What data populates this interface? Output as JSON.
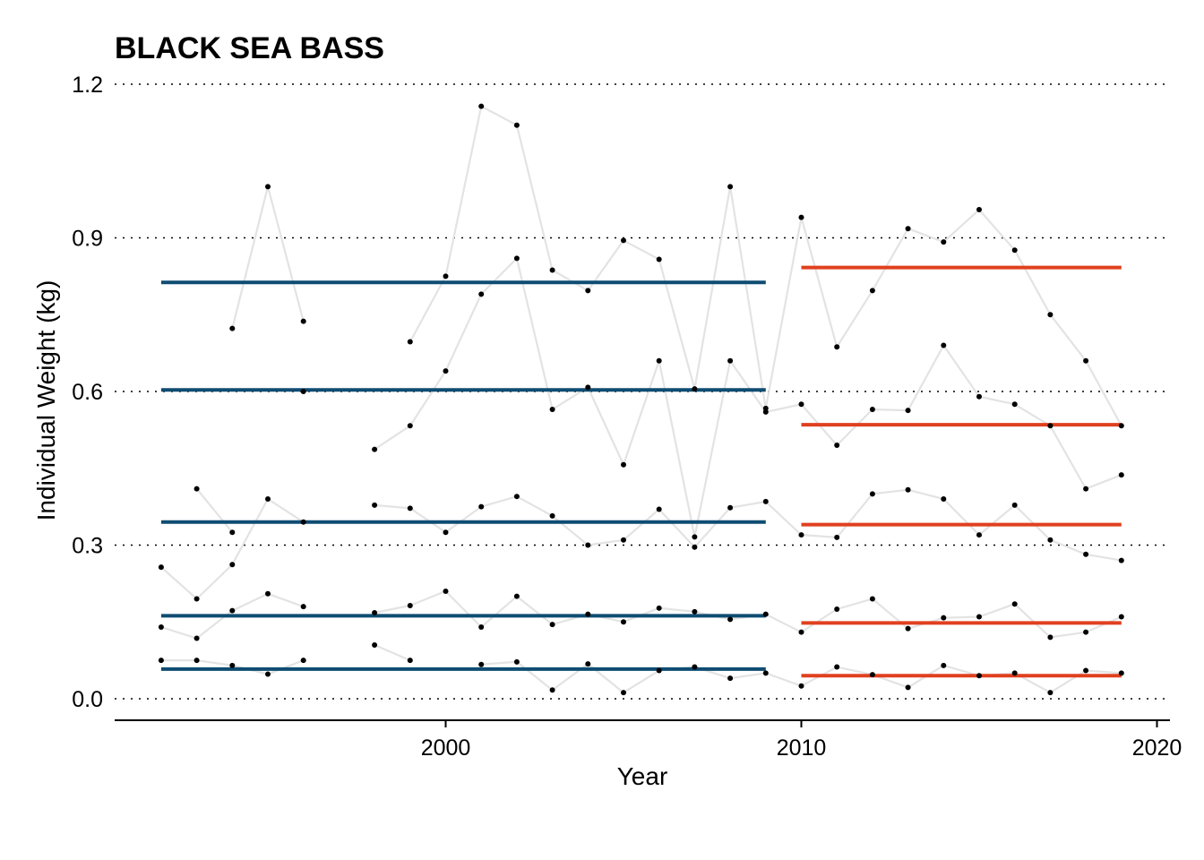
{
  "chart_data": {
    "type": "line",
    "title": "BLACK SEA BASS",
    "xlabel": "Year",
    "ylabel": "Individual Weight (kg)",
    "xlim": [
      1990.7,
      2020.4
    ],
    "ylim": [
      -0.04,
      1.2
    ],
    "xticks": [
      2000,
      2010,
      2020
    ],
    "yticks": [
      0.0,
      0.3,
      0.6,
      0.9,
      1.2
    ],
    "ytick_labels": [
      "0.0",
      "0.3",
      "0.6",
      "0.9",
      "1.2"
    ],
    "grid": "horizontal dotted",
    "colors": {
      "point": "#000000",
      "series_line": "#e3e3e3",
      "period1": "#0f4c72",
      "period2": "#e0401f"
    },
    "series": [
      {
        "x": [
          1992,
          1993,
          1994,
          1995,
          1996,
          1997,
          1998,
          1999,
          2000,
          2001,
          2002,
          2003,
          2004,
          2005,
          2006,
          2007,
          2008,
          2009,
          2010,
          2011,
          2012,
          2013,
          2014,
          2015,
          2016,
          2017,
          2018,
          2019
        ],
        "y": [
          0.075,
          0.075,
          0.065,
          0.048,
          0.075,
          null,
          0.105,
          0.075,
          null,
          0.067,
          0.072,
          0.017,
          0.068,
          0.012,
          0.055,
          0.062,
          0.04,
          0.05,
          0.025,
          0.062,
          0.047,
          0.022,
          0.065,
          0.045,
          0.05,
          0.012,
          0.055,
          0.05
        ]
      },
      {
        "x": [
          1992,
          1993,
          1994,
          1995,
          1996,
          1997,
          1998,
          1999,
          2000,
          2001,
          2002,
          2003,
          2004,
          2005,
          2006,
          2007,
          2008,
          2009,
          2010,
          2011,
          2012,
          2013,
          2014,
          2015,
          2016,
          2017,
          2018,
          2019
        ],
        "y": [
          0.14,
          0.118,
          0.172,
          0.205,
          0.18,
          null,
          0.168,
          0.182,
          0.21,
          0.14,
          0.2,
          0.145,
          0.165,
          0.15,
          0.177,
          0.17,
          0.155,
          0.165,
          0.13,
          0.175,
          0.195,
          0.137,
          0.158,
          0.16,
          0.185,
          0.12,
          0.13,
          0.16
        ]
      },
      {
        "x": [
          1992,
          1993,
          1994,
          1995,
          1996,
          1997,
          1998,
          1999,
          2000,
          2001,
          2002,
          2003,
          2004,
          2005,
          2006,
          2007,
          2008,
          2009,
          2010,
          2011,
          2012,
          2013,
          2014,
          2015,
          2016,
          2017,
          2018,
          2019
        ],
        "y": [
          0.257,
          0.195,
          0.262,
          0.39,
          0.345,
          null,
          0.378,
          0.372,
          0.325,
          0.375,
          0.395,
          0.357,
          0.3,
          0.31,
          0.37,
          0.296,
          0.373,
          0.385,
          0.32,
          0.315,
          0.4,
          0.408,
          0.39,
          0.32,
          0.378,
          0.31,
          0.282,
          0.27
        ]
      },
      {
        "x": [
          1992,
          1993,
          1994,
          1995,
          1996,
          1997,
          1998,
          1999,
          2000,
          2001,
          2002,
          2003,
          2004,
          2005,
          2006,
          2007,
          2008,
          2009,
          2010,
          2011,
          2012,
          2013,
          2014,
          2015,
          2016,
          2017,
          2018,
          2019
        ],
        "y": [
          null,
          0.41,
          0.325,
          null,
          0.6,
          null,
          0.487,
          0.533,
          0.64,
          0.79,
          0.86,
          0.565,
          0.608,
          0.457,
          0.66,
          0.316,
          0.66,
          0.56,
          0.575,
          0.495,
          0.565,
          0.563,
          0.69,
          0.59,
          0.575,
          0.533,
          0.41,
          0.437
        ]
      },
      {
        "x": [
          1992,
          1993,
          1994,
          1995,
          1996,
          1997,
          1998,
          1999,
          2000,
          2001,
          2002,
          2003,
          2004,
          2005,
          2006,
          2007,
          2008,
          2009,
          2010,
          2011,
          2012,
          2013,
          2014,
          2015,
          2016,
          2017,
          2018,
          2019
        ],
        "y": [
          null,
          null,
          0.723,
          1.0,
          0.737,
          null,
          null,
          0.697,
          0.825,
          1.157,
          1.12,
          0.837,
          0.797,
          0.895,
          0.858,
          0.605,
          1.0,
          0.567,
          0.94,
          0.687,
          0.797,
          0.918,
          0.892,
          0.955,
          0.876,
          0.75,
          0.66,
          0.533
        ]
      }
    ],
    "reference_lines": [
      {
        "period": 1,
        "x": [
          1992,
          2009
        ],
        "y": 0.813
      },
      {
        "period": 1,
        "x": [
          1992,
          2009
        ],
        "y": 0.603
      },
      {
        "period": 1,
        "x": [
          1992,
          2009
        ],
        "y": 0.345
      },
      {
        "period": 1,
        "x": [
          1992,
          2009
        ],
        "y": 0.162
      },
      {
        "period": 1,
        "x": [
          1992,
          2009
        ],
        "y": 0.058
      },
      {
        "period": 2,
        "x": [
          2010,
          2019
        ],
        "y": 0.842
      },
      {
        "period": 2,
        "x": [
          2010,
          2019
        ],
        "y": 0.535
      },
      {
        "period": 2,
        "x": [
          2010,
          2019
        ],
        "y": 0.34
      },
      {
        "period": 2,
        "x": [
          2010,
          2019
        ],
        "y": 0.148
      },
      {
        "period": 2,
        "x": [
          2010,
          2019
        ],
        "y": 0.045
      }
    ]
  }
}
